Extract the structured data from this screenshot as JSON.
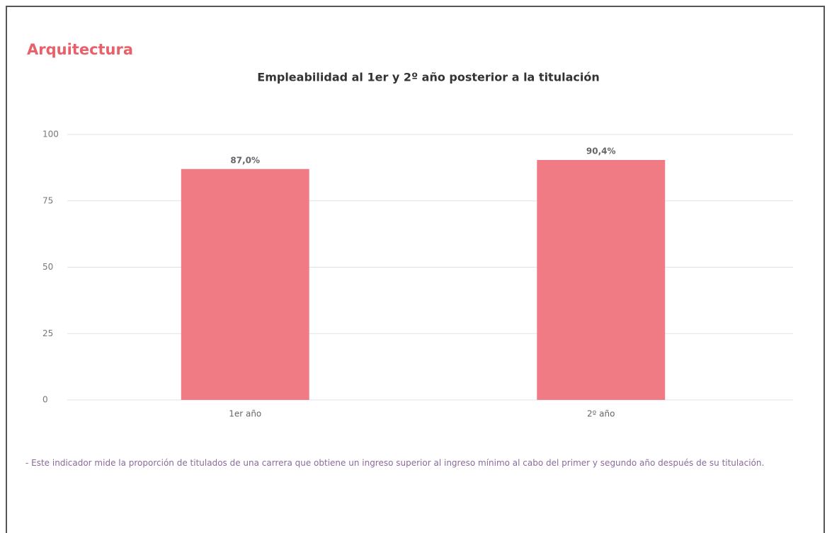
{
  "heading": "Arquitectura",
  "chart_data": {
    "type": "bar",
    "title": "Empleabilidad al 1er y 2º año posterior a la titulación",
    "categories": [
      "1er año",
      "2º año"
    ],
    "values": [
      87.0,
      90.4
    ],
    "value_labels": [
      "87,0%",
      "90,4%"
    ],
    "color": "#f07b84",
    "ylim": [
      0,
      100
    ],
    "yticks": [
      0,
      25,
      50,
      75,
      100
    ],
    "grid": true
  },
  "note": "- Este indicador mide la proporción de titulados de una carrera que obtiene un ingreso superior al ingreso mínimo al cabo del primer y segundo año después de su titulación."
}
